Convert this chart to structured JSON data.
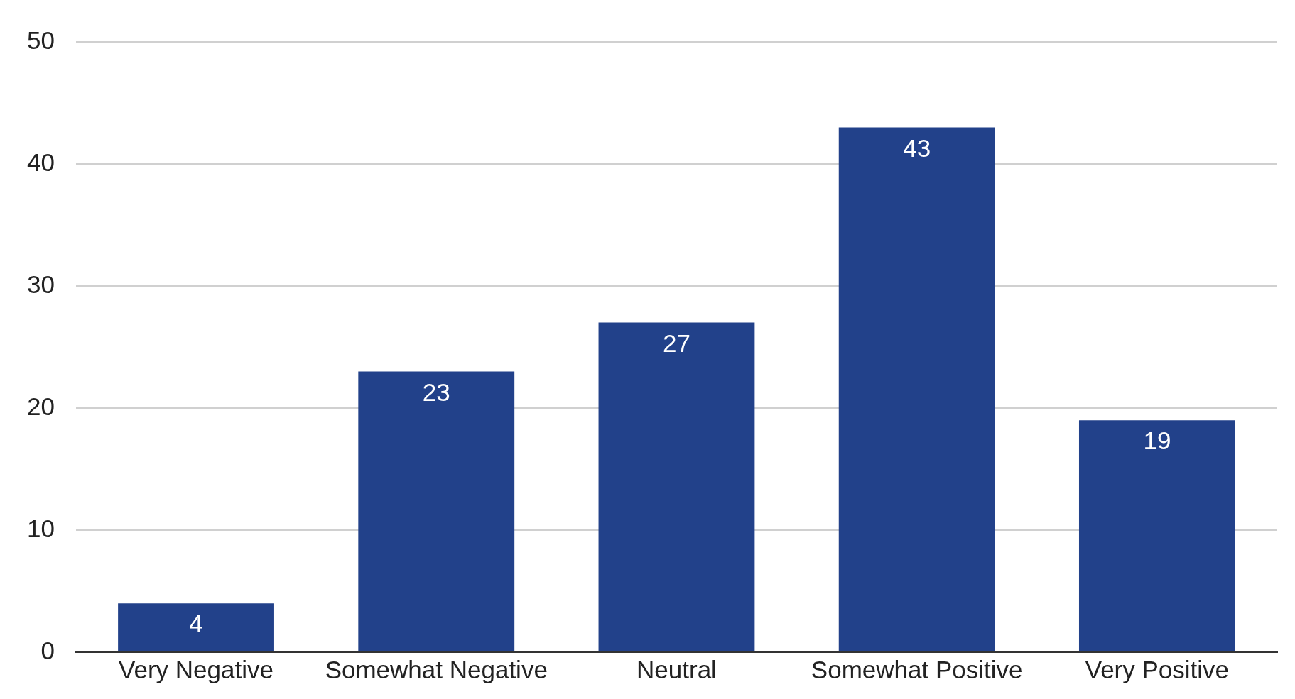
{
  "chart_data": {
    "type": "bar",
    "categories": [
      "Very Negative",
      "Somewhat Negative",
      "Neutral",
      "Somewhat Positive",
      "Very Positive"
    ],
    "values": [
      4,
      23,
      27,
      43,
      19
    ],
    "color": "#22418a",
    "ylim": [
      0,
      50
    ],
    "yticks": [
      0,
      10,
      20,
      30,
      40,
      50
    ],
    "grid": "y",
    "data_labels": true,
    "legend": false
  }
}
